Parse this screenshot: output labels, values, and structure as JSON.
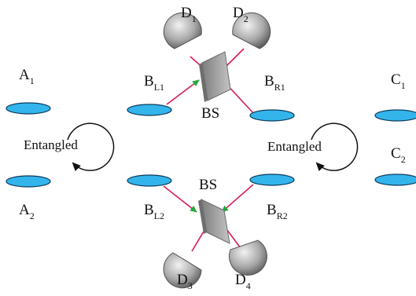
{
  "colors": {
    "atom_fill": "#33b5ec",
    "atom_stroke": "#0e3a5c",
    "beam": "#d81b60",
    "arrow": "#1faa3a",
    "splitter": "#a9a9a9",
    "detector": "#9c9c9c"
  },
  "labels": {
    "a1": {
      "base": "A",
      "sub": "1"
    },
    "a2": {
      "base": "A",
      "sub": "2"
    },
    "bl1": {
      "base": "B",
      "sub": "L1"
    },
    "bl2": {
      "base": "B",
      "sub": "L2"
    },
    "br1": {
      "base": "B",
      "sub": "R1"
    },
    "br2": {
      "base": "B",
      "sub": "R2"
    },
    "c1": {
      "base": "C",
      "sub": "1"
    },
    "c2": {
      "base": "C",
      "sub": "2"
    },
    "d1": {
      "base": "D",
      "sub": "1"
    },
    "d2": {
      "base": "D",
      "sub": "2"
    },
    "d3": {
      "base": "D",
      "sub": "3"
    },
    "d4": {
      "base": "D",
      "sub": "4"
    },
    "bs_top": "BS",
    "bs_bottom": "BS",
    "entangled_left": "Entangled",
    "entangled_right": "Entangled"
  }
}
